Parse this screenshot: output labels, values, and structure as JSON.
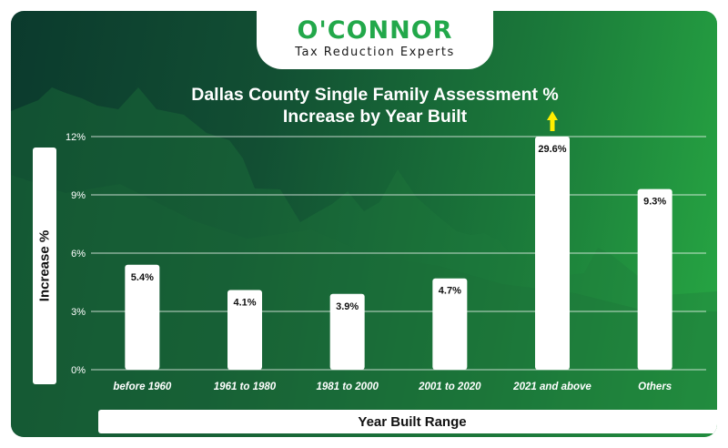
{
  "brand": {
    "name": "O'CONNOR",
    "tagline": "Tax Reduction Experts"
  },
  "colors": {
    "brand_green": "#22a84a",
    "bar_fill": "#ffffff",
    "arrow": "#ffee00",
    "text_dark": "#111111"
  },
  "chart_data": {
    "type": "bar",
    "title": "Dallas County Single Family Assessment % Increase by Year Built",
    "title_lines": [
      "Dallas County Single Family Assessment %",
      "Increase by Year Built"
    ],
    "xlabel": "Year Built Range",
    "ylabel": "Increase %",
    "categories": [
      "before 1960",
      "1961 to 1980",
      "1981 to 2000",
      "2001 to 2020",
      "2021 and above",
      "Others"
    ],
    "values": [
      5.4,
      4.1,
      3.9,
      4.7,
      29.6,
      9.3
    ],
    "data_labels": [
      "5.4%",
      "4.1%",
      "3.9%",
      "4.7%",
      "29.6%",
      "9.3%"
    ],
    "ylim": [
      0,
      12
    ],
    "yticks": [
      0,
      3,
      6,
      9,
      12
    ],
    "ytick_labels": [
      "0%",
      "3%",
      "6%",
      "9%",
      "12%"
    ],
    "grid": true,
    "legend": "none",
    "annotations": [
      {
        "category": "2021 and above",
        "type": "arrow-up",
        "meaning": "value exceeds axis maximum"
      }
    ]
  }
}
